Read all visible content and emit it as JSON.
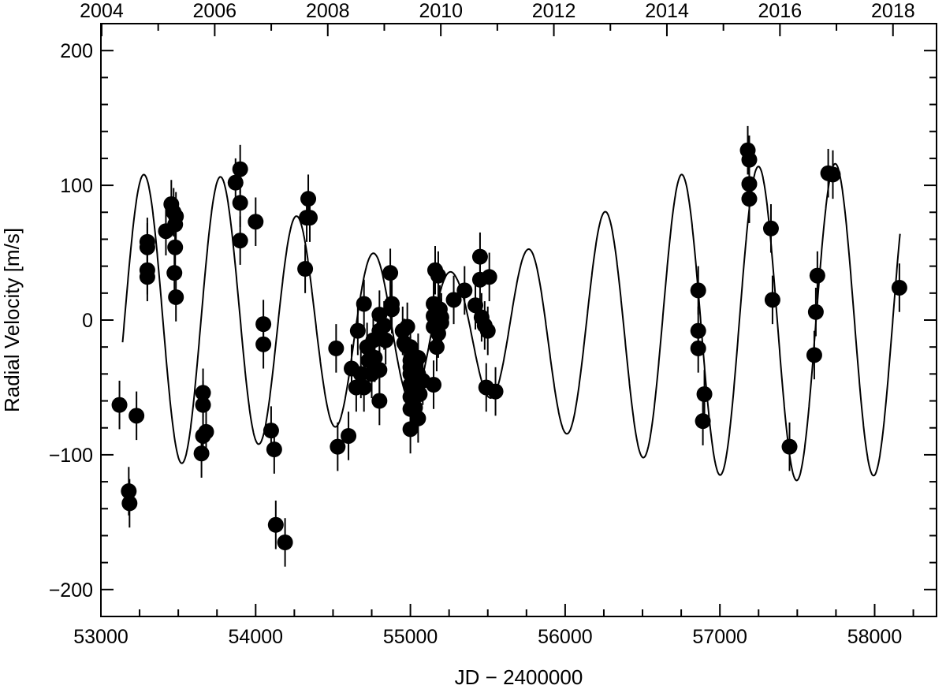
{
  "chart_data": {
    "type": "scatter",
    "title": "",
    "xlabel": "JD − 2400000",
    "ylabel": "Radial Velocity [m/s]",
    "xlim": [
      53000,
      58400
    ],
    "ylim": [
      -220,
      220
    ],
    "x_ticks": [
      53000,
      54000,
      55000,
      56000,
      57000,
      58000
    ],
    "x_tick_labels": [
      "53000",
      "54000",
      "55000",
      "56000",
      "57000",
      "58000"
    ],
    "y_ticks": [
      -200,
      -100,
      0,
      100,
      200
    ],
    "y_tick_labels": [
      "−200",
      "−100",
      "0",
      "100",
      "200"
    ],
    "top_axis_label_values": [
      53005,
      53735,
      54466,
      55197,
      55927,
      56658,
      57388,
      58119
    ],
    "top_axis_labels": [
      "2004",
      "2006",
      "2008",
      "2010",
      "2012",
      "2014",
      "2016",
      "2018"
    ],
    "grid": false,
    "legend": "none",
    "colors": {
      "points": "#000000",
      "model": "#000000",
      "axes": "#000000"
    },
    "series": [
      {
        "type": "scatter",
        "points": [
          [
            53120,
            -63
          ],
          [
            53180,
            -127
          ],
          [
            53185,
            -136
          ],
          [
            53230,
            -71
          ],
          [
            53300,
            58
          ],
          [
            53300,
            54
          ],
          [
            53300,
            37
          ],
          [
            53300,
            32
          ],
          [
            53420,
            66
          ],
          [
            53455,
            86
          ],
          [
            53470,
            80
          ],
          [
            53480,
            71
          ],
          [
            53485,
            77
          ],
          [
            53480,
            54
          ],
          [
            53475,
            35
          ],
          [
            53485,
            17
          ],
          [
            53650,
            -99
          ],
          [
            53660,
            -54
          ],
          [
            53660,
            -63
          ],
          [
            53660,
            -86
          ],
          [
            53680,
            -83
          ],
          [
            53870,
            102
          ],
          [
            53900,
            112
          ],
          [
            53900,
            87
          ],
          [
            53900,
            59
          ],
          [
            54000,
            73
          ],
          [
            54050,
            -3
          ],
          [
            54050,
            -18
          ],
          [
            54100,
            -82
          ],
          [
            54120,
            -96
          ],
          [
            54130,
            -152
          ],
          [
            54190,
            -165
          ],
          [
            54320,
            38
          ],
          [
            54330,
            76
          ],
          [
            54340,
            90
          ],
          [
            54350,
            76
          ],
          [
            54520,
            -21
          ],
          [
            54530,
            -94
          ],
          [
            54600,
            -86
          ],
          [
            54620,
            -36
          ],
          [
            54650,
            -50
          ],
          [
            54660,
            -8
          ],
          [
            54680,
            -40
          ],
          [
            54700,
            12
          ],
          [
            54700,
            -50
          ],
          [
            54720,
            -20
          ],
          [
            54730,
            -30
          ],
          [
            54750,
            -40
          ],
          [
            54760,
            -15
          ],
          [
            54770,
            -28
          ],
          [
            54800,
            -60
          ],
          [
            54800,
            -37
          ],
          [
            54800,
            -8
          ],
          [
            54800,
            4
          ],
          [
            54830,
            -4
          ],
          [
            54840,
            -15
          ],
          [
            54870,
            35
          ],
          [
            54880,
            12
          ],
          [
            54880,
            8
          ],
          [
            54950,
            -8
          ],
          [
            54960,
            -17
          ],
          [
            54970,
            -19
          ],
          [
            54980,
            -5
          ],
          [
            55000,
            -48
          ],
          [
            55000,
            -57
          ],
          [
            55000,
            -40
          ],
          [
            55000,
            -35
          ],
          [
            55000,
            -30
          ],
          [
            55000,
            -20
          ],
          [
            55000,
            -81
          ],
          [
            55000,
            -66
          ],
          [
            55030,
            -50
          ],
          [
            55030,
            -35
          ],
          [
            55030,
            -65
          ],
          [
            55050,
            -73
          ],
          [
            55050,
            -28
          ],
          [
            55050,
            -40
          ],
          [
            55060,
            -55
          ],
          [
            55080,
            -45
          ],
          [
            55150,
            -48
          ],
          [
            55150,
            12
          ],
          [
            55150,
            3
          ],
          [
            55150,
            -5
          ],
          [
            55160,
            37
          ],
          [
            55170,
            -20
          ],
          [
            55180,
            -10
          ],
          [
            55180,
            33
          ],
          [
            55190,
            8
          ],
          [
            55200,
            -2
          ],
          [
            55200,
            2
          ],
          [
            55280,
            15
          ],
          [
            55350,
            22
          ],
          [
            55420,
            11
          ],
          [
            55450,
            47
          ],
          [
            55450,
            30
          ],
          [
            55460,
            2
          ],
          [
            55480,
            -4
          ],
          [
            55490,
            -50
          ],
          [
            55500,
            -8
          ],
          [
            55510,
            32
          ],
          [
            55550,
            -53
          ],
          [
            56860,
            22
          ],
          [
            56860,
            -8
          ],
          [
            56860,
            -21
          ],
          [
            56890,
            -75
          ],
          [
            56900,
            -55
          ],
          [
            57180,
            126
          ],
          [
            57190,
            119
          ],
          [
            57190,
            101
          ],
          [
            57190,
            90
          ],
          [
            57330,
            68
          ],
          [
            57340,
            15
          ],
          [
            57450,
            -94
          ],
          [
            57610,
            -26
          ],
          [
            57620,
            6
          ],
          [
            57630,
            33
          ],
          [
            57700,
            109
          ],
          [
            57730,
            108
          ],
          [
            58160,
            24
          ]
        ]
      },
      {
        "type": "line",
        "model": "Keplerian fit curve"
      }
    ]
  }
}
